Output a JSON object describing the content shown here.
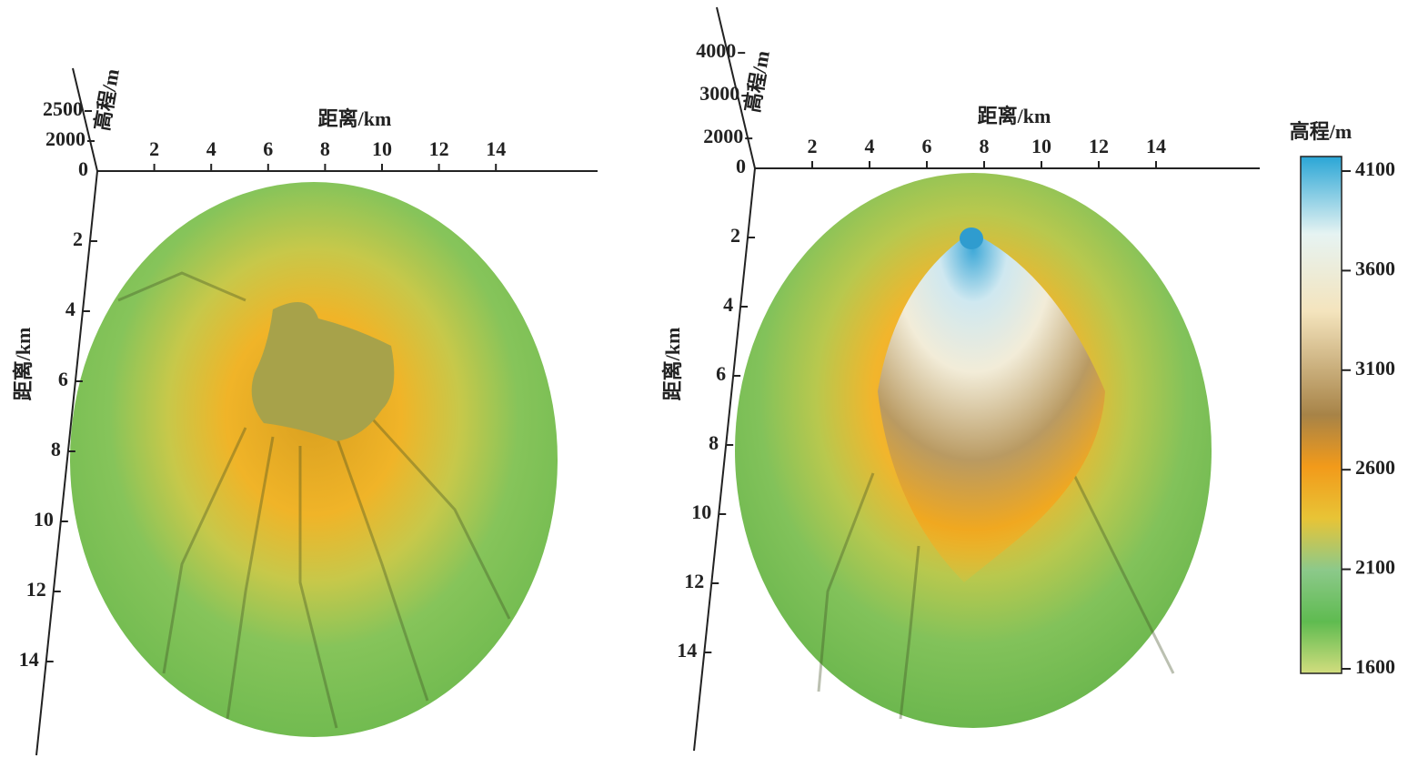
{
  "panels": [
    {
      "elevation_label": "高程/m",
      "elevation_ticks": [
        0,
        2000,
        2500
      ],
      "x_label": "距离/km",
      "x_ticks": [
        2,
        4,
        6,
        8,
        10,
        12,
        14
      ],
      "y_label": "距离/km",
      "y_ticks": [
        2,
        4,
        6,
        8,
        10,
        12,
        14
      ]
    },
    {
      "elevation_label": "高程/m",
      "elevation_ticks": [
        0,
        2000,
        3000,
        4000
      ],
      "x_label": "距离/km",
      "x_ticks": [
        2,
        4,
        6,
        8,
        10,
        12,
        14
      ],
      "y_label": "距离/km",
      "y_ticks": [
        2,
        4,
        6,
        8,
        10,
        12,
        14
      ]
    }
  ],
  "colorbar": {
    "title": "高程/m",
    "ticks": [
      4100,
      3600,
      3100,
      2600,
      2100,
      1600
    ],
    "range": [
      1600,
      4100
    ]
  }
}
